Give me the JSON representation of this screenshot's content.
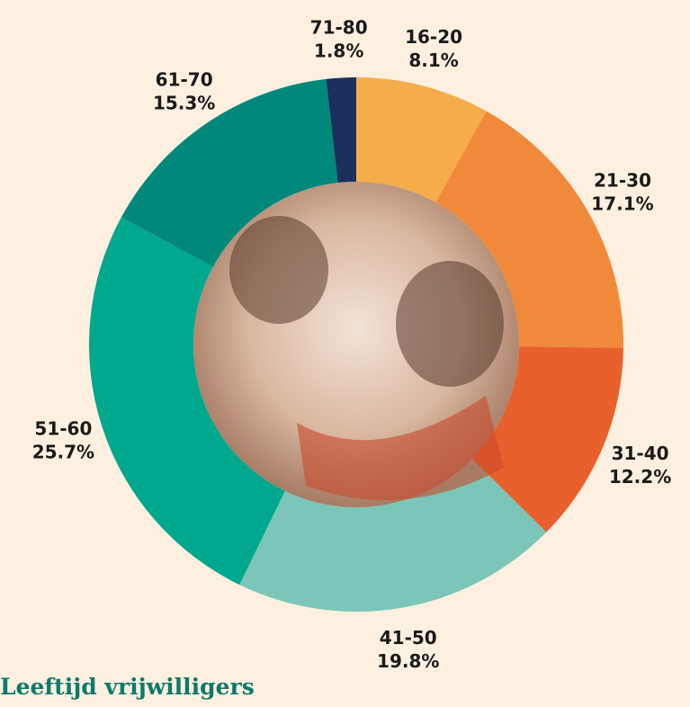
{
  "chart_data": {
    "type": "donut",
    "title": "Leeftijd vrijwilligers",
    "categories": [
      "16-20",
      "21-30",
      "31-40",
      "41-50",
      "51-60",
      "61-70",
      "71-80"
    ],
    "values": [
      8.1,
      17.1,
      12.2,
      19.8,
      25.7,
      15.3,
      1.8
    ],
    "value_labels": [
      "8.1%",
      "17.1%",
      "12.2%",
      "19.8%",
      "25.7%",
      "15.3%",
      "1.8%"
    ],
    "colors": [
      "#f5ac4a",
      "#f08a3a",
      "#e8602b",
      "#7bc6b8",
      "#00a88e",
      "#00897a",
      "#1c2e5c"
    ]
  }
}
